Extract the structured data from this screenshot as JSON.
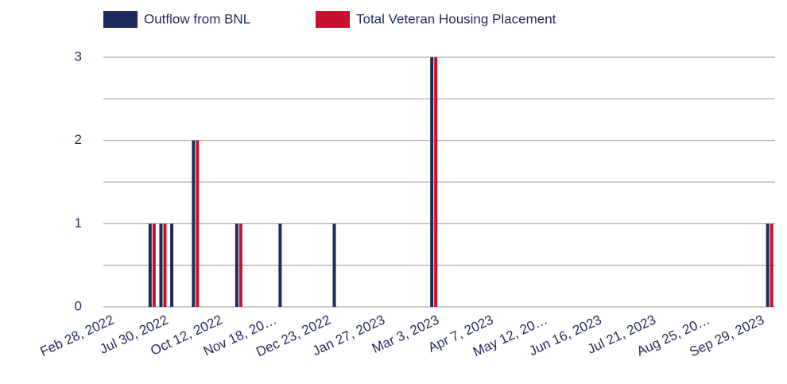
{
  "chart_data": {
    "type": "bar",
    "categories": [
      "Feb 28, 2022",
      null,
      null,
      null,
      null,
      "Jul 30, 2022",
      null,
      null,
      null,
      null,
      "Oct 12, 2022",
      null,
      null,
      null,
      null,
      "Nov 18, 20…",
      null,
      null,
      null,
      null,
      "Dec 23, 2022",
      null,
      null,
      null,
      null,
      "Jan 27, 2023",
      null,
      null,
      null,
      null,
      "Mar 3, 2023",
      null,
      null,
      null,
      null,
      "Apr 7, 2023",
      null,
      null,
      null,
      null,
      "May 12, 20…",
      null,
      null,
      null,
      null,
      "Jun 16, 2023",
      null,
      null,
      null,
      null,
      "Jul 21, 2023",
      null,
      null,
      null,
      null,
      "Aug 25, 20…",
      null,
      null,
      null,
      null,
      "Sep 29, 2023",
      null
    ],
    "series": [
      {
        "name": "Outflow from BNL",
        "color": "#1f2a5c",
        "values": [
          0,
          0,
          0,
          0,
          1,
          1,
          1,
          0,
          2,
          0,
          0,
          0,
          1,
          0,
          0,
          0,
          1,
          0,
          0,
          0,
          0,
          1,
          0,
          0,
          0,
          0,
          0,
          0,
          0,
          0,
          3,
          0,
          0,
          0,
          0,
          0,
          0,
          0,
          0,
          0,
          0,
          0,
          0,
          0,
          0,
          0,
          0,
          0,
          0,
          0,
          0,
          0,
          0,
          0,
          0,
          0,
          0,
          0,
          0,
          0,
          0,
          1
        ]
      },
      {
        "name": "Total Veteran Housing Placement",
        "color": "#c8102e",
        "values": [
          0,
          0,
          0,
          0,
          1,
          1,
          0,
          0,
          2,
          0,
          0,
          0,
          1,
          0,
          0,
          0,
          0,
          0,
          0,
          0,
          0,
          0,
          0,
          0,
          0,
          0,
          0,
          0,
          0,
          0,
          3,
          0,
          0,
          0,
          0,
          0,
          0,
          0,
          0,
          0,
          0,
          0,
          0,
          0,
          0,
          0,
          0,
          0,
          0,
          0,
          0,
          0,
          0,
          0,
          0,
          0,
          0,
          0,
          0,
          0,
          0,
          1
        ]
      }
    ],
    "ylim": [
      0,
      3
    ],
    "yticks": [
      0,
      1,
      2,
      3
    ],
    "minor_yticks": [
      0.5,
      1.5,
      2.5
    ],
    "grid": true,
    "legend": "top"
  }
}
